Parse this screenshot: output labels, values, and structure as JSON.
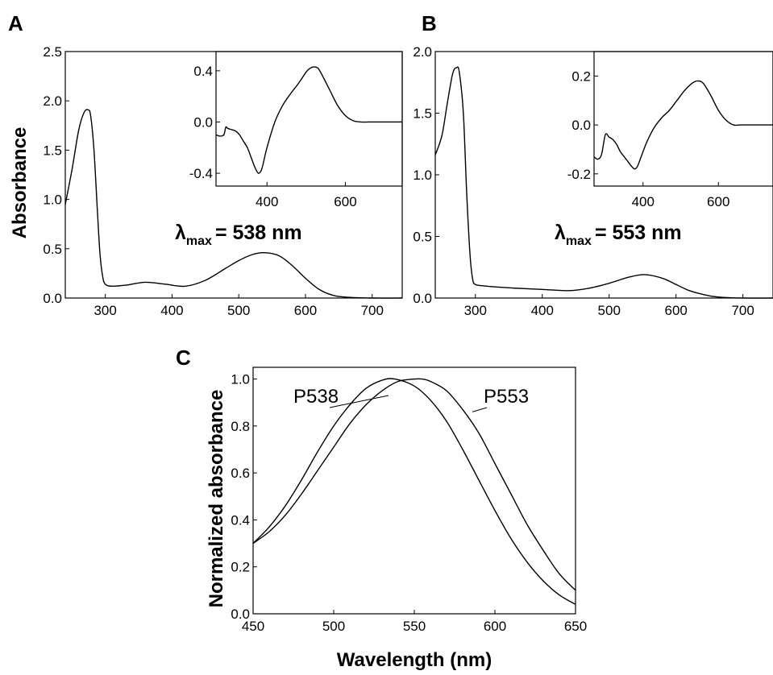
{
  "chart_data": [
    {
      "id": "A",
      "panel_label": "A",
      "type": "line",
      "xlabel": "",
      "ylabel": "Absorbance",
      "xlim": [
        240,
        745
      ],
      "ylim": [
        0,
        2.5
      ],
      "xticks": [
        300,
        400,
        500,
        600,
        700
      ],
      "yticks": [
        0.0,
        0.5,
        1.0,
        1.5,
        2.0,
        2.5
      ],
      "xtick_labels": [
        "300",
        "400",
        "500",
        "600",
        "700"
      ],
      "ytick_labels": [
        "0.0",
        "0.5",
        "1.0",
        "1.5",
        "2.0",
        "2.5"
      ],
      "annotation": {
        "prefix": "λ",
        "subscript": "max",
        "text": "= 538 nm"
      },
      "series": [
        {
          "x": [
            240,
            250,
            260,
            268,
            274,
            278,
            283,
            288,
            292,
            296,
            300,
            310,
            330,
            360,
            390,
            420,
            450,
            480,
            500,
            520,
            538,
            560,
            580,
            600,
            620,
            640,
            660,
            700,
            745
          ],
          "y": [
            0.95,
            1.3,
            1.7,
            1.88,
            1.91,
            1.85,
            1.5,
            0.9,
            0.45,
            0.22,
            0.14,
            0.12,
            0.13,
            0.16,
            0.14,
            0.12,
            0.18,
            0.3,
            0.38,
            0.44,
            0.46,
            0.43,
            0.33,
            0.2,
            0.09,
            0.03,
            0.01,
            0.0,
            0.0
          ]
        }
      ],
      "inset": {
        "type": "line",
        "xlim": [
          270,
          745
        ],
        "ylim": [
          -0.5,
          0.55
        ],
        "xticks": [
          400,
          600
        ],
        "yticks": [
          -0.4,
          0.0,
          0.4
        ],
        "xtick_labels": [
          "400",
          "600"
        ],
        "ytick_labels": [
          "-0.4",
          "0.0",
          "0.4"
        ],
        "series": [
          {
            "x": [
              270,
              280,
              290,
              295,
              300,
              310,
              320,
              330,
              340,
              350,
              360,
              370,
              378,
              385,
              390,
              400,
              420,
              440,
              460,
              480,
              500,
              510,
              520,
              530,
              540,
              560,
              580,
              600,
              620,
              640,
              660,
              700,
              745
            ],
            "y": [
              -0.1,
              -0.11,
              -0.1,
              -0.04,
              -0.05,
              -0.06,
              -0.07,
              -0.1,
              -0.15,
              -0.2,
              -0.28,
              -0.36,
              -0.4,
              -0.38,
              -0.33,
              -0.2,
              0.0,
              0.13,
              0.22,
              0.3,
              0.39,
              0.42,
              0.43,
              0.42,
              0.37,
              0.25,
              0.13,
              0.05,
              0.01,
              0.0,
              0.0,
              0.0,
              0.0
            ]
          }
        ]
      }
    },
    {
      "id": "B",
      "panel_label": "B",
      "type": "line",
      "xlabel": "",
      "ylabel": "",
      "xlim": [
        240,
        745
      ],
      "ylim": [
        0,
        2.0
      ],
      "xticks": [
        300,
        400,
        500,
        600,
        700
      ],
      "yticks": [
        0.0,
        0.5,
        1.0,
        1.5,
        2.0
      ],
      "xtick_labels": [
        "300",
        "400",
        "500",
        "600",
        "700"
      ],
      "ytick_labels": [
        "0.0",
        "0.5",
        "1.0",
        "1.5",
        "2.0"
      ],
      "annotation": {
        "prefix": "λ",
        "subscript": "max",
        "text": "= 553 nm"
      },
      "series": [
        {
          "x": [
            240,
            250,
            258,
            266,
            272,
            276,
            282,
            287,
            292,
            296,
            300,
            310,
            330,
            360,
            400,
            440,
            470,
            500,
            530,
            553,
            580,
            600,
            620,
            640,
            660,
            700,
            745
          ],
          "y": [
            1.16,
            1.32,
            1.58,
            1.82,
            1.87,
            1.83,
            1.5,
            0.85,
            0.35,
            0.15,
            0.11,
            0.1,
            0.09,
            0.08,
            0.07,
            0.06,
            0.08,
            0.12,
            0.17,
            0.19,
            0.16,
            0.11,
            0.06,
            0.03,
            0.01,
            0.0,
            0.0
          ]
        }
      ],
      "inset": {
        "type": "line",
        "xlim": [
          270,
          745
        ],
        "ylim": [
          -0.25,
          0.3
        ],
        "xticks": [
          400,
          600
        ],
        "yticks": [
          -0.2,
          0.0,
          0.2
        ],
        "xtick_labels": [
          "400",
          "600"
        ],
        "ytick_labels": [
          "-0.2",
          "0.0",
          "0.2"
        ],
        "series": [
          {
            "x": [
              270,
              280,
              290,
              300,
              310,
              320,
              330,
              340,
              350,
              360,
              370,
              378,
              385,
              395,
              410,
              430,
              450,
              470,
              490,
              510,
              530,
              545,
              560,
              580,
              600,
              620,
              640,
              660,
              700,
              745
            ],
            "y": [
              -0.13,
              -0.14,
              -0.12,
              -0.04,
              -0.05,
              -0.06,
              -0.08,
              -0.11,
              -0.13,
              -0.15,
              -0.17,
              -0.18,
              -0.17,
              -0.13,
              -0.07,
              -0.01,
              0.03,
              0.06,
              0.1,
              0.14,
              0.17,
              0.18,
              0.17,
              0.12,
              0.06,
              0.02,
              0.0,
              0.0,
              0.0,
              0.0
            ]
          }
        ]
      }
    },
    {
      "id": "C",
      "panel_label": "C",
      "type": "line",
      "xlabel": "Wavelength (nm)",
      "ylabel": "Normalized absorbance",
      "xlim": [
        450,
        650
      ],
      "ylim": [
        0,
        1.05
      ],
      "xticks": [
        450,
        500,
        550,
        600,
        650
      ],
      "yticks": [
        0.0,
        0.2,
        0.4,
        0.6,
        0.8,
        1.0
      ],
      "xtick_labels": [
        "450",
        "500",
        "550",
        "600",
        "650"
      ],
      "ytick_labels": [
        "0.0",
        "0.2",
        "0.4",
        "0.6",
        "0.8",
        "1.0"
      ],
      "series": [
        {
          "name": "P538",
          "x": [
            450,
            460,
            470,
            480,
            490,
            500,
            510,
            520,
            530,
            538,
            550,
            560,
            570,
            580,
            590,
            600,
            610,
            620,
            630,
            640,
            650
          ],
          "y": [
            0.3,
            0.37,
            0.46,
            0.57,
            0.69,
            0.8,
            0.89,
            0.96,
            0.995,
            1.0,
            0.97,
            0.91,
            0.82,
            0.7,
            0.57,
            0.44,
            0.32,
            0.22,
            0.14,
            0.08,
            0.04
          ]
        },
        {
          "name": "P553",
          "x": [
            450,
            460,
            470,
            480,
            490,
            500,
            510,
            520,
            530,
            540,
            550,
            555,
            560,
            570,
            580,
            590,
            600,
            610,
            620,
            630,
            640,
            650
          ],
          "y": [
            0.3,
            0.35,
            0.42,
            0.51,
            0.61,
            0.71,
            0.81,
            0.89,
            0.95,
            0.99,
            1.0,
            1.0,
            0.99,
            0.95,
            0.87,
            0.77,
            0.64,
            0.51,
            0.38,
            0.27,
            0.17,
            0.1
          ]
        }
      ],
      "series_labels": [
        {
          "text": "P538",
          "leader_to": [
            534,
            0.93
          ]
        },
        {
          "text": "P553",
          "leader_to": [
            586,
            0.86
          ]
        }
      ]
    }
  ]
}
